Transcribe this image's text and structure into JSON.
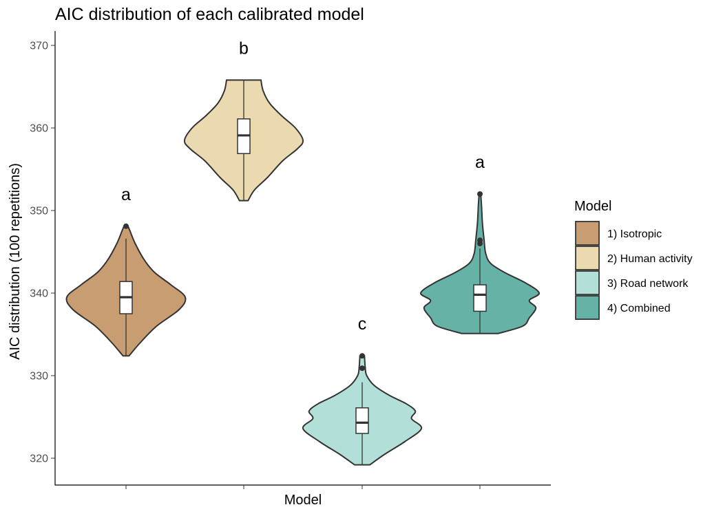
{
  "chart_data": {
    "type": "violin",
    "title": "AIC distribution of each calibrated model",
    "xlabel": "Model",
    "ylabel": "AIC distribution (100 repetitions)",
    "ylim": [
      318,
      372
    ],
    "yticks": [
      320,
      330,
      340,
      350,
      360,
      370
    ],
    "grid": false,
    "legend": {
      "title": "Model",
      "position": "right",
      "entries": [
        "1) Isotropic",
        "2) Human activity",
        "3) Road network",
        "4) Combined"
      ]
    },
    "series": [
      {
        "name": "1) Isotropic",
        "color": "#C99D72",
        "letter": "a",
        "min": 332.4,
        "max": 348.1,
        "box": {
          "q1": 337.5,
          "median": 339.5,
          "q3": 341.4,
          "whisker_low": 332.4,
          "whisker_high": 346.6
        },
        "outliers": [
          348.1
        ],
        "density": [
          [
            332.4,
            3
          ],
          [
            334,
            14
          ],
          [
            336,
            30
          ],
          [
            338,
            52
          ],
          [
            339.5,
            58
          ],
          [
            341,
            44
          ],
          [
            342.5,
            28
          ],
          [
            344,
            18
          ],
          [
            346,
            9
          ],
          [
            347.5,
            4
          ],
          [
            348.1,
            2
          ]
        ]
      },
      {
        "name": "2) Human activity",
        "color": "#EBD9B0",
        "letter": "b",
        "min": 351.2,
        "max": 365.8,
        "box": {
          "q1": 356.9,
          "median": 359.1,
          "q3": 361.1,
          "whisker_low": 351.2,
          "whisker_high": 365.8
        },
        "outliers": [],
        "density": [
          [
            351.2,
            4
          ],
          [
            352.5,
            10
          ],
          [
            354,
            22
          ],
          [
            356,
            36
          ],
          [
            357.5,
            50
          ],
          [
            358.5,
            55
          ],
          [
            360,
            48
          ],
          [
            361.5,
            35
          ],
          [
            363,
            24
          ],
          [
            364.5,
            18
          ],
          [
            365.8,
            16
          ]
        ]
      },
      {
        "name": "3) Road network",
        "color": "#B2E0D8",
        "letter": "c",
        "min": 319.2,
        "max": 332.4,
        "box": {
          "q1": 323.0,
          "median": 324.3,
          "q3": 326.1,
          "whisker_low": 319.2,
          "whisker_high": 329.2
        },
        "outliers": [
          330.9,
          332.4
        ],
        "density": [
          [
            319.2,
            10
          ],
          [
            320.5,
            30
          ],
          [
            322,
            56
          ],
          [
            323.6,
            78
          ],
          [
            324.8,
            65
          ],
          [
            325.7,
            70
          ],
          [
            326.6,
            58
          ],
          [
            327.6,
            36
          ],
          [
            328.8,
            16
          ],
          [
            330,
            6
          ],
          [
            331,
            4
          ],
          [
            332.4,
            3
          ]
        ]
      },
      {
        "name": "4) Combined",
        "color": "#66B2A6",
        "letter": "a",
        "min": 335.1,
        "max": 352.0,
        "box": {
          "q1": 337.8,
          "median": 339.8,
          "q3": 341.0,
          "whisker_low": 335.1,
          "whisker_high": 345.4
        },
        "outliers": [
          346.0,
          346.4,
          352.0
        ],
        "density": [
          [
            335.1,
            22
          ],
          [
            336,
            52
          ],
          [
            337,
            60
          ],
          [
            338.2,
            68
          ],
          [
            339.1,
            60
          ],
          [
            340,
            72
          ],
          [
            341.2,
            56
          ],
          [
            342.5,
            30
          ],
          [
            343.6,
            13
          ],
          [
            344.8,
            7
          ],
          [
            346.5,
            5
          ],
          [
            348.5,
            3
          ],
          [
            350.5,
            2
          ],
          [
            352,
            1
          ]
        ]
      }
    ]
  }
}
